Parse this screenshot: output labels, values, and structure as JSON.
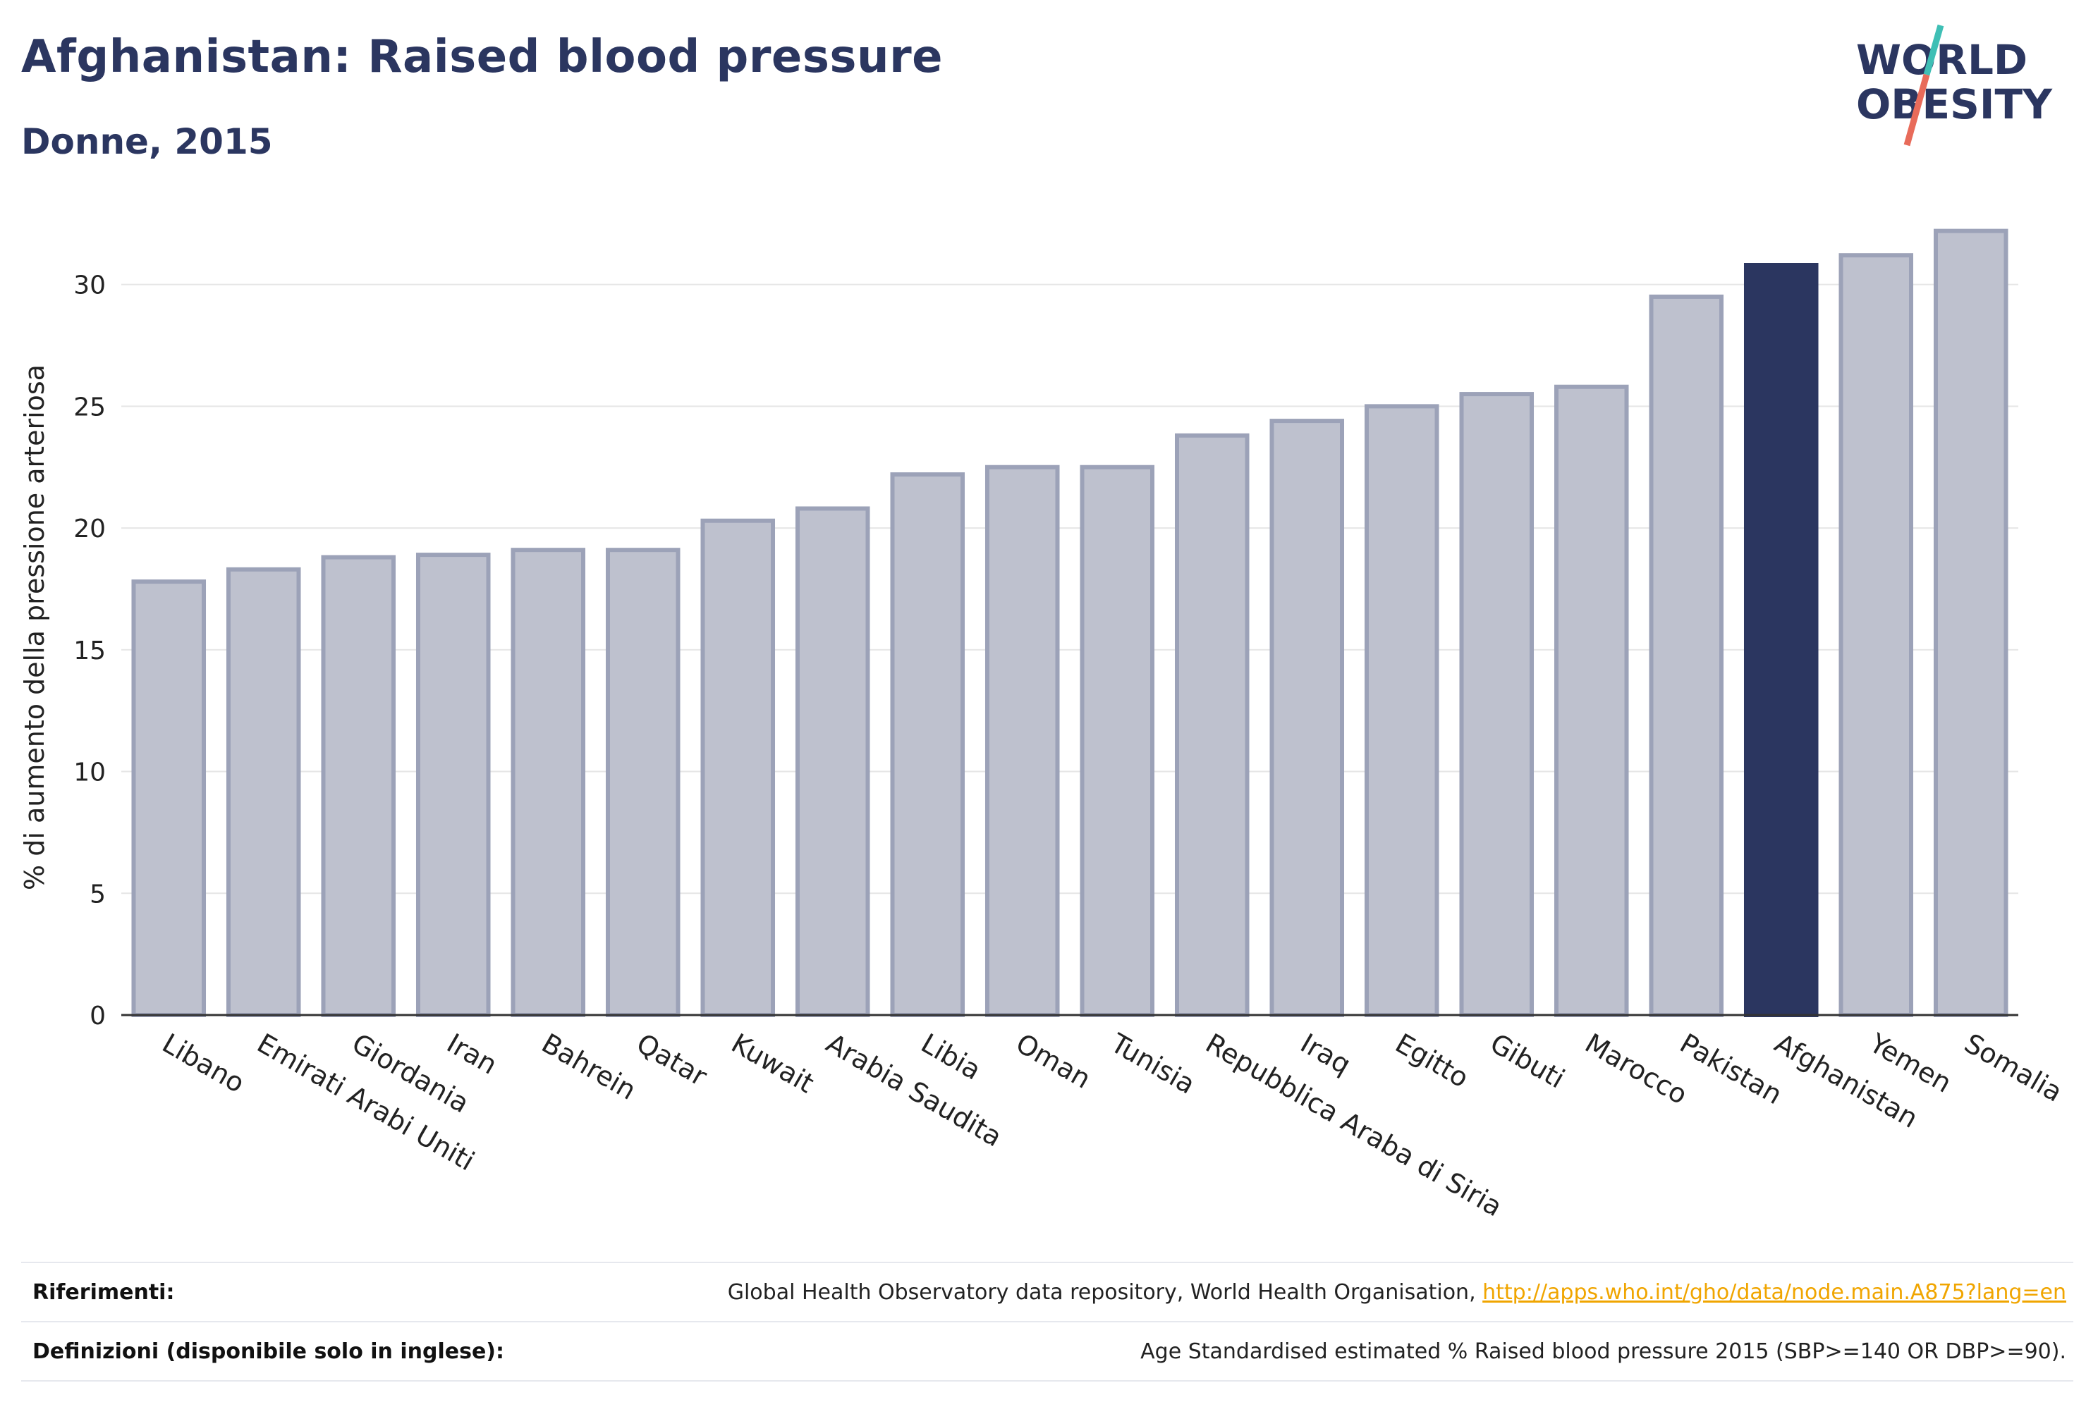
{
  "header": {
    "title": "Afghanistan: Raised blood pressure",
    "subtitle": "Donne, 2015"
  },
  "logo": {
    "line1": "WORLD",
    "line2": "OBESITY",
    "text_color": "#2b3660",
    "slash_colors": [
      "#3fbfb5",
      "#e86b5a"
    ]
  },
  "colors": {
    "bar_default": "#bec1ce",
    "bar_border": "#9ca2b8",
    "bar_highlight": "#2b3660",
    "axis": "#333333",
    "grid": "#e6e6e6"
  },
  "chart_data": {
    "type": "bar",
    "ylabel": "% di aumento della pressione arteriosa",
    "ylim": [
      0,
      33
    ],
    "yticks": [
      0,
      5,
      10,
      15,
      20,
      25,
      30
    ],
    "grid": true,
    "highlight": "Afghanistan",
    "categories": [
      "Libano",
      "Emirati Arabi Uniti",
      "Giordania",
      "Iran",
      "Bahrein",
      "Qatar",
      "Kuwait",
      "Arabia Saudita",
      "Libia",
      "Oman",
      "Tunisia",
      "Repubblica Araba di Siria",
      "Iraq",
      "Egitto",
      "Gibuti",
      "Marocco",
      "Pakistan",
      "Afghanistan",
      "Yemen",
      "Somalia"
    ],
    "values": [
      17.8,
      18.3,
      18.8,
      18.9,
      19.1,
      19.1,
      20.3,
      20.8,
      22.2,
      22.5,
      22.5,
      23.8,
      24.4,
      25.0,
      25.5,
      25.8,
      29.5,
      30.8,
      31.2,
      32.2
    ]
  },
  "footer": {
    "references_label": "Riferimenti:",
    "references_text": "Global Health Observatory data repository, World Health Organisation, ",
    "references_link": "http://apps.who.int/gho/data/node.main.A875?lang=en",
    "definitions_label": "Definizioni (disponibile solo in inglese):",
    "definitions_text": "Age Standardised estimated % Raised blood pressure 2015 (SBP>=140 OR DBP>=90)."
  }
}
